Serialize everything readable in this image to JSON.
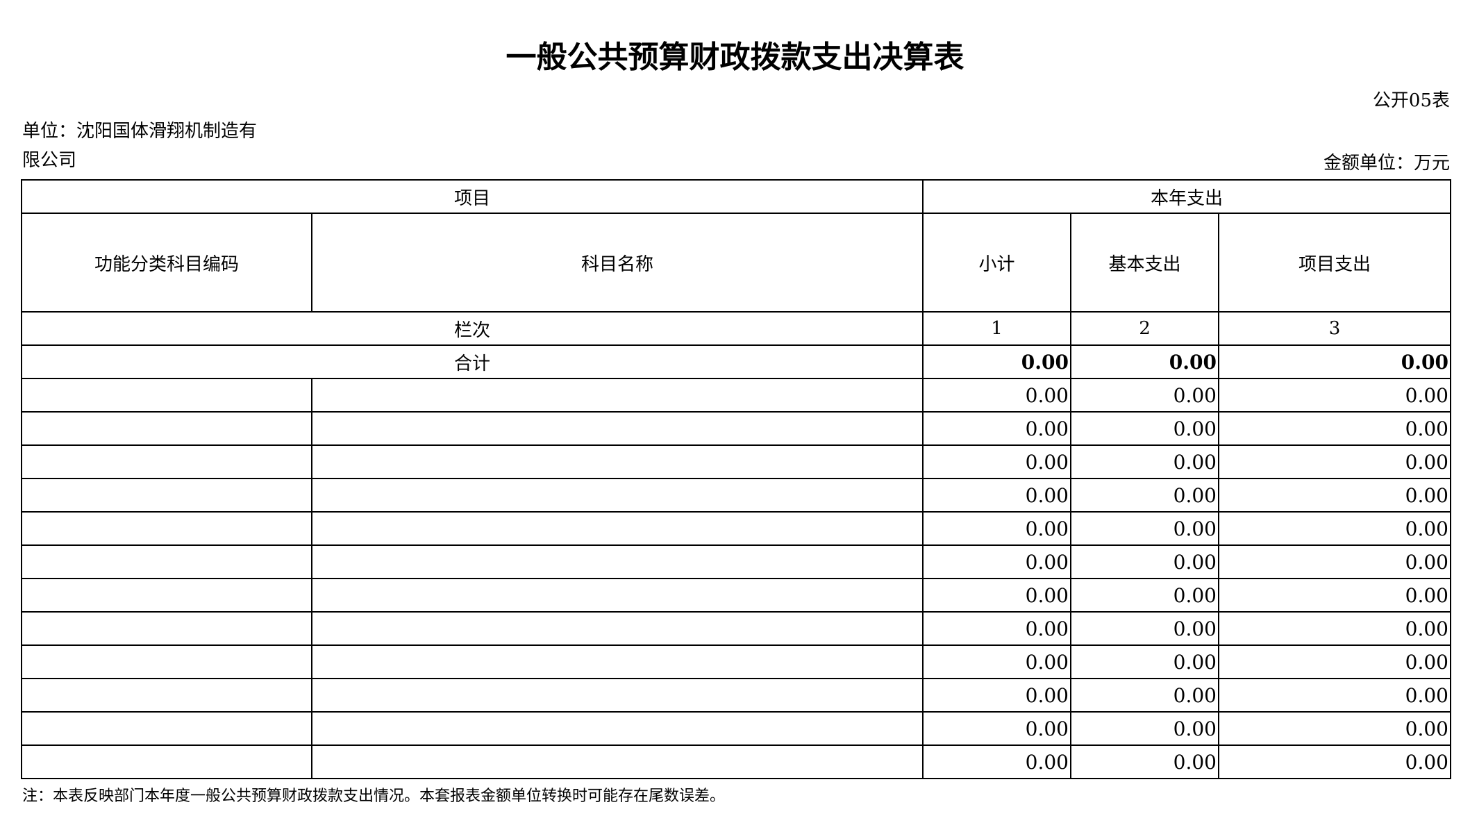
{
  "title": "一般公共预算财政拨款支出决算表",
  "form_no": "公开05表",
  "unit": "单位：沈阳国体滑翔机制造有限公司",
  "amount_unit": "金额单位：万元",
  "table": {
    "header": {
      "project": "项目",
      "current_year": "本年支出",
      "code": "功能分类科目编码",
      "name": "科目名称",
      "subtotal": "小计",
      "basic": "基本支出",
      "project_expense": "项目支出"
    },
    "column_index": {
      "label": "栏次",
      "cols": [
        "1",
        "2",
        "3"
      ]
    },
    "total": {
      "label": "合计",
      "values": [
        "0.00",
        "0.00",
        "0.00"
      ]
    },
    "rows": [
      [
        "0.00",
        "0.00",
        "0.00"
      ],
      [
        "0.00",
        "0.00",
        "0.00"
      ],
      [
        "0.00",
        "0.00",
        "0.00"
      ],
      [
        "0.00",
        "0.00",
        "0.00"
      ],
      [
        "0.00",
        "0.00",
        "0.00"
      ],
      [
        "0.00",
        "0.00",
        "0.00"
      ],
      [
        "0.00",
        "0.00",
        "0.00"
      ],
      [
        "0.00",
        "0.00",
        "0.00"
      ],
      [
        "0.00",
        "0.00",
        "0.00"
      ],
      [
        "0.00",
        "0.00",
        "0.00"
      ],
      [
        "0.00",
        "0.00",
        "0.00"
      ],
      [
        "0.00",
        "0.00",
        "0.00"
      ]
    ]
  },
  "note": "注：本表反映部门本年度一般公共预算财政拨款支出情况。本套报表金额单位转换时可能存在尾数误差。"
}
